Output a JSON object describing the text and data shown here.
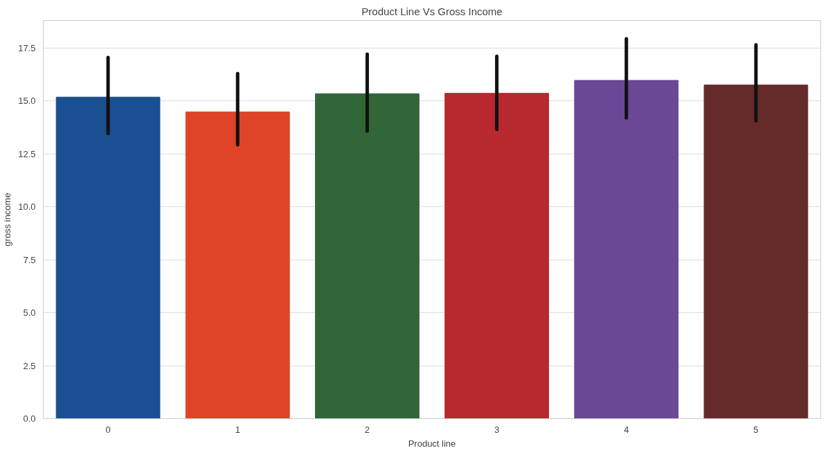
{
  "chart_data": {
    "type": "bar",
    "title": "Product Line Vs Gross Income",
    "xlabel": "Product line",
    "ylabel": "gross income",
    "categories": [
      "0",
      "1",
      "2",
      "3",
      "4",
      "5"
    ],
    "values": [
      15.18,
      14.48,
      15.34,
      15.36,
      15.97,
      15.75
    ],
    "colors": [
      "#1a4f91",
      "#e04428",
      "#316638",
      "#b7282f",
      "#6a4895",
      "#652b2b"
    ],
    "errors": [
      [
        13.47,
        17.05
      ],
      [
        12.93,
        16.29
      ],
      [
        13.58,
        17.21
      ],
      [
        13.66,
        17.11
      ],
      [
        14.2,
        17.93
      ],
      [
        14.06,
        17.65
      ]
    ],
    "ylim": [
      0,
      18.8
    ],
    "yticks": [
      {
        "value": 0,
        "label": "0.0"
      },
      2.5,
      {
        "value": 5,
        "label": "5.0"
      },
      7.5,
      {
        "value": 10,
        "label": "10.0"
      },
      12.5,
      {
        "value": 15,
        "label": "15.0"
      },
      17.5
    ],
    "grid": "y"
  }
}
